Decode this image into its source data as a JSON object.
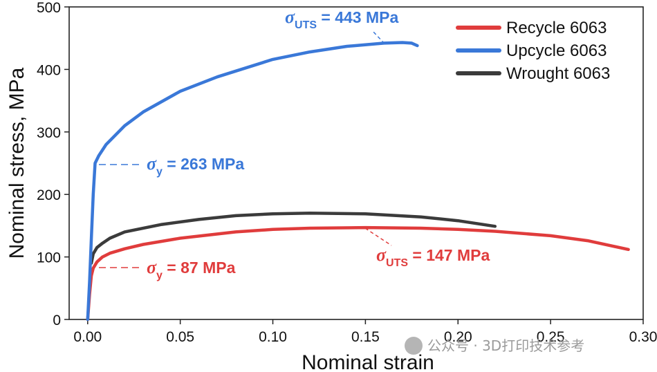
{
  "chart_data": {
    "type": "line",
    "title": "",
    "xlabel": "Nominal strain",
    "ylabel": "Nominal stress, MPa",
    "xlim": [
      -0.01,
      0.3
    ],
    "ylim": [
      0,
      500
    ],
    "xticks": [
      0.0,
      0.05,
      0.1,
      0.15,
      0.2,
      0.25,
      0.3
    ],
    "xtick_labels": [
      "0.00",
      "0.05",
      "0.10",
      "0.15",
      "0.20",
      "0.25",
      "0.30"
    ],
    "yticks": [
      0,
      100,
      200,
      300,
      400,
      500
    ],
    "ytick_labels": [
      "0",
      "100",
      "200",
      "300",
      "400",
      "500"
    ],
    "grid": false,
    "legend_position": "top-right",
    "series": [
      {
        "name": "Recycle 6063",
        "color": "#e03c3c",
        "x": [
          0,
          0.001,
          0.002,
          0.003,
          0.005,
          0.008,
          0.012,
          0.02,
          0.03,
          0.05,
          0.08,
          0.1,
          0.12,
          0.15,
          0.18,
          0.2,
          0.22,
          0.25,
          0.27,
          0.292
        ],
        "y": [
          0,
          40,
          70,
          82,
          92,
          100,
          106,
          113,
          120,
          130,
          140,
          144,
          146,
          147,
          146,
          144,
          141,
          134,
          126,
          112
        ]
      },
      {
        "name": "Upcycle 6063",
        "color": "#3a78d8",
        "x": [
          0,
          0.001,
          0.002,
          0.003,
          0.004,
          0.006,
          0.01,
          0.02,
          0.03,
          0.05,
          0.07,
          0.1,
          0.12,
          0.14,
          0.16,
          0.17,
          0.175,
          0.178
        ],
        "y": [
          0,
          60,
          130,
          200,
          250,
          262,
          280,
          310,
          332,
          365,
          388,
          416,
          428,
          437,
          442,
          443,
          442,
          438
        ]
      },
      {
        "name": "Wrought 6063",
        "color": "#3b3b3b",
        "x": [
          0.002,
          0.003,
          0.005,
          0.008,
          0.012,
          0.02,
          0.04,
          0.06,
          0.08,
          0.1,
          0.12,
          0.15,
          0.18,
          0.2,
          0.22
        ],
        "y": [
          90,
          105,
          115,
          122,
          130,
          140,
          152,
          160,
          166,
          169,
          170,
          169,
          164,
          158,
          149
        ]
      }
    ],
    "annotations": [
      {
        "symbol": "σ",
        "sub": "UTS",
        "value": " = 443 MPa",
        "color": "#3a78d8",
        "x": 0.175,
        "y": 443
      },
      {
        "symbol": "σ",
        "sub": "y",
        "value": " = 263 MPa",
        "color": "#3a78d8",
        "x": 0.004,
        "y": 249
      },
      {
        "symbol": "σ",
        "sub": "y",
        "value": " = 87 MPa",
        "color": "#e03c3c",
        "x": 0.004,
        "y": 84
      },
      {
        "symbol": "σ",
        "sub": "UTS",
        "value": " = 147 MPa",
        "color": "#e03c3c",
        "x": 0.15,
        "y": 147
      }
    ]
  },
  "watermark": "公众号 · 3D打印技术参考"
}
